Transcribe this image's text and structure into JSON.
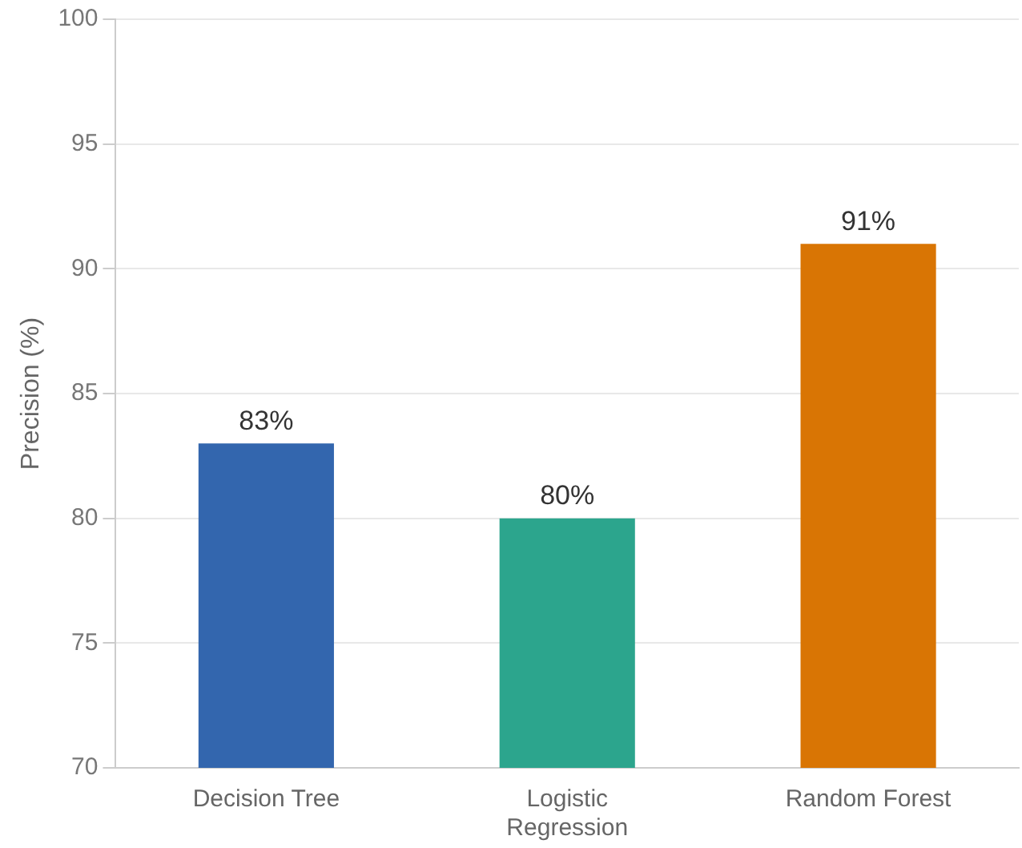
{
  "chart_data": {
    "type": "bar",
    "ylabel": "Precision (%)",
    "categories": [
      "Decision Tree",
      "Logistic Regression",
      "Random Forest"
    ],
    "values": [
      83,
      80,
      91
    ],
    "colors": [
      "#3366ae",
      "#2ca58d",
      "#d97504"
    ],
    "value_labels": [
      "83%",
      "80%",
      "91%"
    ],
    "ylim": [
      70,
      100
    ],
    "yticks": [
      70,
      75,
      80,
      85,
      90,
      95,
      100
    ],
    "grid": "y",
    "legend": false
  }
}
